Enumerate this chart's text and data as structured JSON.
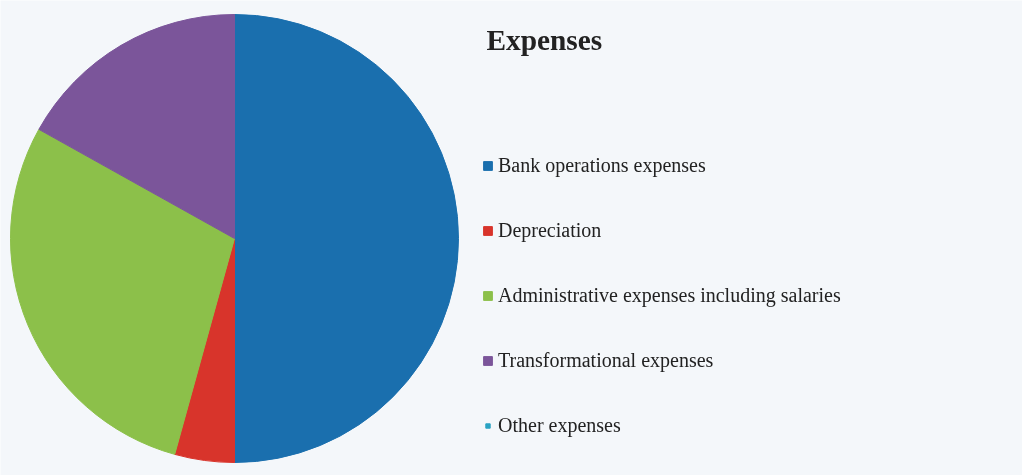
{
  "chart_data": {
    "type": "pie",
    "title": "Expenses",
    "legend": "right",
    "categories": [
      "Bank operations expenses",
      "Depreciation",
      "Administrative expenses including salaries",
      "Transformational expenses",
      "Other expenses"
    ],
    "values": [
      50,
      4.3,
      28.8,
      16.9,
      0
    ],
    "colors": [
      "#1a6fae",
      "#d8342b",
      "#8cc04a",
      "#7b559a",
      "#2aa3c3"
    ]
  }
}
